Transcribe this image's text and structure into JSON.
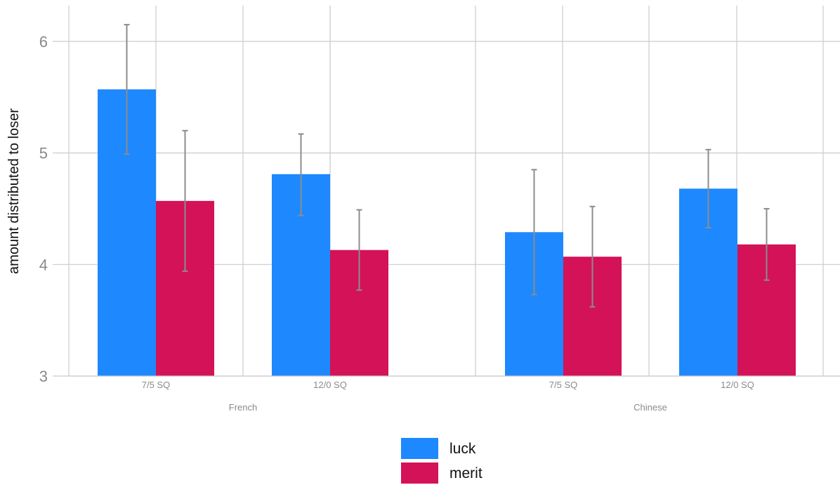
{
  "chart_data": {
    "type": "bar",
    "ylabel": "amount distributed to loser",
    "xlabel": "",
    "ylim": [
      3,
      6.3
    ],
    "y_ticks": [
      "3",
      "4",
      "5",
      "6"
    ],
    "grid": true,
    "legend_position": "bottom",
    "groups": [
      {
        "name": "French",
        "categories": [
          "7/5 SQ",
          "12/0 SQ"
        ]
      },
      {
        "name": "Chinese",
        "categories": [
          "7/5 SQ",
          "12/0 SQ"
        ]
      }
    ],
    "series": [
      {
        "name": "luck",
        "color": "#1e88ff",
        "values": [
          5.57,
          4.81,
          4.29,
          4.68
        ],
        "error_low": [
          4.99,
          4.44,
          3.73,
          4.33
        ],
        "error_high": [
          6.15,
          5.17,
          4.85,
          5.03
        ]
      },
      {
        "name": "merit",
        "color": "#d31257",
        "values": [
          4.57,
          4.13,
          4.07,
          4.18
        ],
        "error_low": [
          3.94,
          3.77,
          3.62,
          3.86
        ],
        "error_high": [
          5.2,
          4.49,
          4.52,
          4.5
        ]
      }
    ],
    "error_bar_color": "#8c8c8c"
  }
}
